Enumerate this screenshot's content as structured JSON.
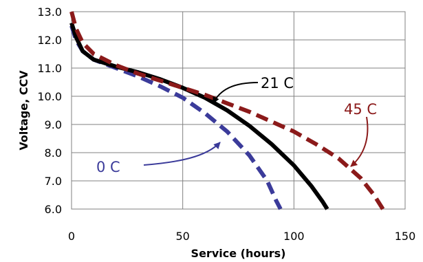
{
  "chart_data": {
    "type": "line",
    "title": "",
    "xlabel": "Service (hours)",
    "ylabel": "Voltage, CCV",
    "xlim": [
      0,
      150
    ],
    "ylim": [
      6.0,
      13.0
    ],
    "x_ticks": [
      0,
      50,
      100,
      150
    ],
    "y_ticks": [
      6.0,
      7.0,
      8.0,
      9.0,
      10.0,
      11.0,
      12.0,
      13.0
    ],
    "x_tick_labels": [
      "0",
      "50",
      "100",
      "150"
    ],
    "y_tick_labels": [
      "6.0",
      "7.0",
      "8.0",
      "9.0",
      "10.0",
      "11.0",
      "12.0",
      "13.0"
    ],
    "grid": true,
    "legend": "none",
    "series": [
      {
        "name": "0 C",
        "color": "#3b3b9a",
        "dash": true,
        "points": [
          [
            0,
            12.5
          ],
          [
            2,
            12.0
          ],
          [
            5,
            11.6
          ],
          [
            10,
            11.3
          ],
          [
            20,
            11.0
          ],
          [
            30,
            10.7
          ],
          [
            40,
            10.35
          ],
          [
            50,
            9.95
          ],
          [
            60,
            9.4
          ],
          [
            70,
            8.75
          ],
          [
            80,
            7.9
          ],
          [
            88,
            7.0
          ],
          [
            92,
            6.3
          ],
          [
            94,
            6.0
          ]
        ]
      },
      {
        "name": "21 C",
        "color": "#000000",
        "dash": false,
        "points": [
          [
            0,
            12.6
          ],
          [
            2,
            12.1
          ],
          [
            5,
            11.6
          ],
          [
            10,
            11.3
          ],
          [
            20,
            11.05
          ],
          [
            30,
            10.85
          ],
          [
            40,
            10.6
          ],
          [
            50,
            10.3
          ],
          [
            60,
            9.95
          ],
          [
            70,
            9.5
          ],
          [
            80,
            8.95
          ],
          [
            90,
            8.3
          ],
          [
            100,
            7.55
          ],
          [
            108,
            6.8
          ],
          [
            113,
            6.25
          ],
          [
            115,
            6.0
          ]
        ]
      },
      {
        "name": "45 C",
        "color": "#8b1a1a",
        "dash": true,
        "points": [
          [
            0,
            13.0
          ],
          [
            2,
            12.4
          ],
          [
            5,
            11.9
          ],
          [
            10,
            11.5
          ],
          [
            20,
            11.1
          ],
          [
            30,
            10.8
          ],
          [
            40,
            10.55
          ],
          [
            50,
            10.3
          ],
          [
            60,
            10.05
          ],
          [
            70,
            9.75
          ],
          [
            80,
            9.45
          ],
          [
            90,
            9.1
          ],
          [
            100,
            8.75
          ],
          [
            110,
            8.3
          ],
          [
            120,
            7.8
          ],
          [
            130,
            7.1
          ],
          [
            136,
            6.5
          ],
          [
            140,
            6.0
          ]
        ]
      }
    ],
    "annotations": [
      {
        "text": "0 C",
        "color": "#3b3b9a"
      },
      {
        "text": "21 C",
        "color": "#000000"
      },
      {
        "text": "45 C",
        "color": "#8b1a1a"
      }
    ]
  }
}
